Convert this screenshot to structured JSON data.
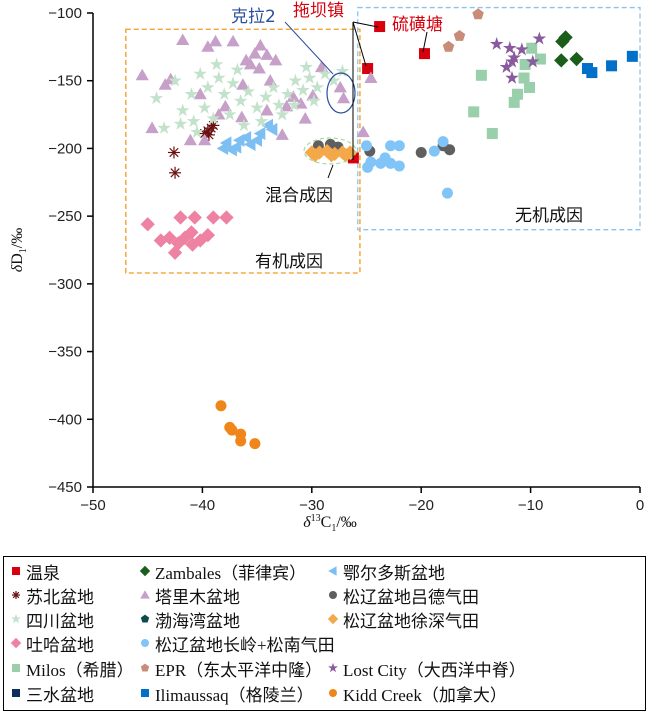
{
  "chart_data": {
    "type": "scatter",
    "xlabel": {
      "delta": "δ",
      "sup": "13",
      "main": "C",
      "sub": "1",
      "unit": "/‰"
    },
    "ylabel": {
      "delta": "δ",
      "main": "D",
      "sub": "1",
      "unit": "/‰"
    },
    "xlim": [
      -50,
      0
    ],
    "ylim": [
      -450,
      -100
    ],
    "xticks": [
      -50,
      -40,
      -30,
      -20,
      -10,
      0
    ],
    "yticks": [
      -100,
      -150,
      -200,
      -250,
      -300,
      -350,
      -400,
      -450
    ],
    "grid": false,
    "legend_position": "bottom",
    "annotations": {
      "kela2": "克拉2",
      "tuobazhen": "拖坝镇",
      "liuhuangtang": "硫磺塘",
      "mixed": "混合成因",
      "inorganic": "无机成因",
      "organic": "有机成因"
    },
    "regions": [
      {
        "name": "有机成因",
        "x": [
          -47,
          -25.6
        ],
        "y": [
          -292,
          -112
        ],
        "color": "#f39a1e"
      },
      {
        "name": "无机成因",
        "x": [
          -25.8,
          0
        ],
        "y": [
          -260,
          -96
        ],
        "color": "#8cc4f0"
      }
    ],
    "series": [
      {
        "name": "温泉",
        "shape": "square",
        "color": "#d7000f",
        "points": [
          [
            -23.8,
            -110
          ],
          [
            -24.9,
            -141
          ],
          [
            -19.7,
            -130
          ],
          [
            -26.2,
            -207
          ]
        ]
      },
      {
        "name": "Zambales（菲律宾）",
        "shape": "diamond",
        "color": "#1b5e1b",
        "points": [
          [
            -6.8,
            -118
          ],
          [
            -7.1,
            -121
          ],
          [
            -7.2,
            -135
          ],
          [
            -5.8,
            -134
          ]
        ]
      },
      {
        "name": "鄂尔多斯盆地",
        "shape": "ltriangle",
        "color": "#7dbff2",
        "points": [
          [
            -38.1,
            -200
          ],
          [
            -37.3,
            -201
          ],
          [
            -36.6,
            -194
          ],
          [
            -35.6,
            -197
          ],
          [
            -34.7,
            -189
          ],
          [
            -34.0,
            -183
          ],
          [
            -37.8,
            -196
          ],
          [
            -36.0,
            -192
          ],
          [
            -35.0,
            -194
          ],
          [
            -33.6,
            -186
          ],
          [
            -36.9,
            -199
          ]
        ]
      },
      {
        "name": "苏北盆地",
        "shape": "asterisk",
        "color": "#6b1010",
        "points": [
          [
            -42.6,
            -203
          ],
          [
            -42.5,
            -218
          ],
          [
            -39.5,
            -187
          ],
          [
            -39.2,
            -185
          ],
          [
            -39.8,
            -189
          ],
          [
            -39.0,
            -183
          ],
          [
            -39.4,
            -190
          ]
        ]
      },
      {
        "name": "塔里木盆地",
        "shape": "triangle",
        "color": "#c6a0c8",
        "points": [
          [
            -41.8,
            -120
          ],
          [
            -38.8,
            -121
          ],
          [
            -37.2,
            -121
          ],
          [
            -34.7,
            -124
          ],
          [
            -35.6,
            -138
          ],
          [
            -34.1,
            -131
          ],
          [
            -45.5,
            -146
          ],
          [
            -43.4,
            -153
          ],
          [
            -36.3,
            -153
          ],
          [
            -33.8,
            -150
          ],
          [
            -29.1,
            -140
          ],
          [
            -31.7,
            -162
          ],
          [
            -27.4,
            -155
          ],
          [
            -27.1,
            -163
          ],
          [
            -44.6,
            -185
          ],
          [
            -41.1,
            -194
          ],
          [
            -39.8,
            -194
          ],
          [
            -36.4,
            -177
          ],
          [
            -32.7,
            -190
          ],
          [
            -32.3,
            -169
          ],
          [
            -30.6,
            -178
          ],
          [
            -34.1,
            -172
          ],
          [
            -37.9,
            -169
          ],
          [
            -39.5,
            -125
          ],
          [
            -35.2,
            -130
          ],
          [
            -36.0,
            -135
          ],
          [
            -34.8,
            -141
          ],
          [
            -33.3,
            -135
          ],
          [
            -42.9,
            -149
          ],
          [
            -40.2,
            -160
          ],
          [
            -38.5,
            -175
          ],
          [
            -31.0,
            -167
          ],
          [
            -29.9,
            -161
          ],
          [
            -24.6,
            -148
          ],
          [
            -25.3,
            -188
          ]
        ]
      },
      {
        "name": "松辽盆地吕德气田",
        "shape": "circle",
        "color": "#5f5f5f",
        "points": [
          [
            -20.0,
            -203
          ],
          [
            -18.0,
            -198
          ],
          [
            -17.4,
            -201
          ],
          [
            -29.4,
            -198
          ],
          [
            -28.3,
            -197
          ],
          [
            -27.6,
            -199
          ],
          [
            -24.7,
            -202
          ]
        ]
      },
      {
        "name": "四川盆地",
        "shape": "star",
        "color": "#c3e2cb",
        "points": [
          [
            -42.5,
            -150
          ],
          [
            -41.0,
            -160
          ],
          [
            -40.2,
            -145
          ],
          [
            -39.5,
            -155
          ],
          [
            -38.5,
            -148
          ],
          [
            -38.0,
            -160
          ],
          [
            -37.2,
            -152
          ],
          [
            -36.5,
            -165
          ],
          [
            -35.8,
            -158
          ],
          [
            -35.0,
            -170
          ],
          [
            -34.2,
            -162
          ],
          [
            -33.5,
            -155
          ],
          [
            -33.0,
            -168
          ],
          [
            -32.2,
            -160
          ],
          [
            -31.5,
            -150
          ],
          [
            -30.8,
            -157
          ],
          [
            -30.2,
            -148
          ],
          [
            -29.5,
            -155
          ],
          [
            -28.8,
            -145
          ],
          [
            -28.0,
            -150
          ],
          [
            -27.2,
            -143
          ],
          [
            -41.8,
            -172
          ],
          [
            -40.8,
            -180
          ],
          [
            -39.8,
            -170
          ],
          [
            -39.0,
            -178
          ],
          [
            -43.5,
            -185
          ],
          [
            -44.2,
            -163
          ],
          [
            -37.5,
            -175
          ],
          [
            -36.2,
            -183
          ],
          [
            -34.6,
            -180
          ],
          [
            -32.7,
            -175
          ],
          [
            -31.6,
            -168
          ],
          [
            -40.5,
            -188
          ],
          [
            -29.8,
            -165
          ],
          [
            -30.5,
            -140
          ],
          [
            -38.7,
            -138
          ],
          [
            -36.8,
            -142
          ],
          [
            -42.0,
            -182
          ]
        ]
      },
      {
        "name": "渤海湾盆地",
        "shape": "pentagon",
        "color": "#0f4b4b",
        "points": []
      },
      {
        "name": "松辽盆地徐深气田",
        "shape": "diamond",
        "color": "#f3a94a",
        "points": [
          [
            -30.0,
            -203
          ],
          [
            -29.3,
            -203
          ],
          [
            -28.6,
            -202
          ],
          [
            -27.9,
            -204
          ],
          [
            -27.2,
            -203
          ],
          [
            -26.5,
            -203
          ],
          [
            -29.7,
            -205
          ],
          [
            -28.2,
            -205
          ],
          [
            -26.9,
            -205
          ]
        ]
      },
      {
        "name": "吐哈盆地",
        "shape": "diamond",
        "color": "#ee82a2",
        "points": [
          [
            -45.0,
            -256
          ],
          [
            -42.0,
            -251
          ],
          [
            -40.7,
            -251
          ],
          [
            -39.0,
            -251
          ],
          [
            -37.8,
            -251
          ],
          [
            -43.0,
            -266
          ],
          [
            -41.6,
            -266
          ],
          [
            -40.2,
            -268
          ],
          [
            -42.5,
            -277
          ],
          [
            -41.0,
            -262
          ],
          [
            -43.8,
            -268
          ],
          [
            -39.5,
            -264
          ],
          [
            -42.2,
            -270
          ],
          [
            -40.9,
            -271
          ]
        ]
      },
      {
        "name": "松辽盆地长岭+松南气田",
        "shape": "circle",
        "color": "#80c4f8",
        "points": [
          [
            -25.0,
            -198
          ],
          [
            -22.8,
            -198
          ],
          [
            -22.0,
            -198
          ],
          [
            -24.6,
            -210
          ],
          [
            -23.7,
            -211
          ],
          [
            -22.8,
            -211
          ],
          [
            -22.0,
            -213
          ],
          [
            -24.9,
            -214
          ],
          [
            -23.3,
            -207
          ],
          [
            -18.0,
            -195
          ],
          [
            -18.8,
            -202
          ],
          [
            -17.6,
            -233
          ]
        ]
      },
      {
        "name": "Milos（希腊）",
        "shape": "square",
        "color": "#99cfab",
        "points": [
          [
            -9.9,
            -126
          ],
          [
            -9.1,
            -134
          ],
          [
            -10.5,
            -138
          ],
          [
            -14.5,
            -146
          ],
          [
            -10.6,
            -148
          ],
          [
            -10.1,
            -155
          ],
          [
            -11.2,
            -160
          ],
          [
            -11.5,
            -166
          ],
          [
            -15.2,
            -173
          ],
          [
            -13.5,
            -189
          ]
        ]
      },
      {
        "name": "EPR（东太平洋中隆）",
        "shape": "pentagon",
        "color": "#c98c78",
        "points": [
          [
            -14.8,
            -101
          ],
          [
            -16.5,
            -117
          ],
          [
            -17.5,
            -125
          ]
        ]
      },
      {
        "name": "Lost City（大西洋中脊）",
        "shape": "star",
        "color": "#8a5a9e",
        "points": [
          [
            -13.1,
            -123
          ],
          [
            -11.9,
            -126
          ],
          [
            -10.8,
            -127
          ],
          [
            -9.2,
            -119
          ],
          [
            -11.5,
            -133
          ],
          [
            -11.7,
            -136
          ],
          [
            -9.8,
            -136
          ],
          [
            -12.2,
            -140
          ],
          [
            -11.7,
            -148
          ]
        ]
      },
      {
        "name": "三水盆地",
        "shape": "square",
        "color": "#0d2f5a",
        "points": []
      },
      {
        "name": "Ilimaussaq（格陵兰）",
        "shape": "square",
        "color": "#0070c8",
        "points": [
          [
            -4.8,
            -141
          ],
          [
            -4.4,
            -144
          ],
          [
            -2.6,
            -139
          ],
          [
            -0.7,
            -132
          ]
        ]
      },
      {
        "name": "Kidd Creek（加拿大）",
        "shape": "circle",
        "color": "#f0861a",
        "points": [
          [
            -38.3,
            -390
          ],
          [
            -37.5,
            -406
          ],
          [
            -37.3,
            -408
          ],
          [
            -36.5,
            -411
          ],
          [
            -36.5,
            -416
          ],
          [
            -35.2,
            -418
          ]
        ]
      }
    ]
  }
}
